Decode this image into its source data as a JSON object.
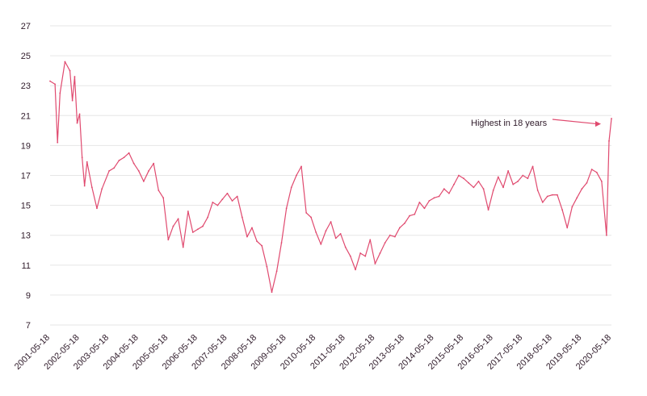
{
  "chart_data": {
    "type": "line",
    "title": "",
    "xlabel": "",
    "ylabel": "",
    "ylim": [
      7,
      27
    ],
    "y_ticks": [
      7,
      9,
      11,
      13,
      15,
      17,
      19,
      21,
      23,
      25,
      27
    ],
    "x_ticks": [
      "2001-05-18",
      "2002-05-18",
      "2003-05-18",
      "2004-05-18",
      "2005-05-18",
      "2006-05-18",
      "2007-05-18",
      "2008-05-18",
      "2009-05-18",
      "2010-05-18",
      "2011-05-18",
      "2012-05-18",
      "2013-05-18",
      "2014-05-18",
      "2015-05-18",
      "2016-05-18",
      "2017-05-18",
      "2018-05-18",
      "2019-05-18",
      "2020-05-18"
    ],
    "grid": "horizontal",
    "colors": {
      "line": "#e04a6f",
      "grid": "#e6e6e6",
      "text": "#2f1b2a"
    },
    "annotation": {
      "text": "Highest in 18 years",
      "target_x": "2020-05-18",
      "target_y": 20.5
    },
    "series": [
      {
        "x": [
          "2001-05-18",
          "2001-07-18",
          "2001-08-18",
          "2001-09-18",
          "2001-11-18",
          "2002-01-18",
          "2002-02-18",
          "2002-03-18",
          "2002-04-18",
          "2002-05-18",
          "2002-06-18",
          "2002-07-18",
          "2002-08-18",
          "2002-10-18",
          "2002-12-18",
          "2003-02-18",
          "2003-05-18",
          "2003-07-18",
          "2003-09-18",
          "2003-11-18",
          "2004-01-18",
          "2004-03-18",
          "2004-05-18",
          "2004-07-18",
          "2004-09-18",
          "2004-11-18",
          "2005-01-18",
          "2005-03-18",
          "2005-05-18",
          "2005-07-18",
          "2005-09-18",
          "2005-11-18",
          "2006-01-18",
          "2006-03-18",
          "2006-05-18",
          "2006-07-18",
          "2006-09-18",
          "2006-11-18",
          "2007-01-18",
          "2007-03-18",
          "2007-05-18",
          "2007-07-18",
          "2007-09-18",
          "2007-11-18",
          "2008-01-18",
          "2008-03-18",
          "2008-05-18",
          "2008-07-18",
          "2008-09-18",
          "2008-11-18",
          "2009-01-18",
          "2009-03-18",
          "2009-05-18",
          "2009-07-18",
          "2009-09-18",
          "2009-11-18",
          "2010-01-18",
          "2010-03-18",
          "2010-05-18",
          "2010-07-18",
          "2010-09-18",
          "2010-11-18",
          "2011-01-18",
          "2011-03-18",
          "2011-05-18",
          "2011-07-18",
          "2011-09-18",
          "2011-11-18",
          "2012-01-18",
          "2012-03-18",
          "2012-05-18",
          "2012-07-18",
          "2012-09-18",
          "2012-11-18",
          "2013-01-18",
          "2013-03-18",
          "2013-05-18",
          "2013-07-18",
          "2013-09-18",
          "2013-11-18",
          "2014-01-18",
          "2014-03-18",
          "2014-05-18",
          "2014-07-18",
          "2014-09-18",
          "2014-11-18",
          "2015-01-18",
          "2015-03-18",
          "2015-05-18",
          "2015-07-18",
          "2015-09-18",
          "2015-11-18",
          "2016-01-18",
          "2016-03-18",
          "2016-05-18",
          "2016-07-18",
          "2016-09-18",
          "2016-11-18",
          "2017-01-18",
          "2017-03-18",
          "2017-05-18",
          "2017-07-18",
          "2017-09-18",
          "2017-11-18",
          "2018-01-18",
          "2018-03-18",
          "2018-05-18",
          "2018-07-18",
          "2018-09-18",
          "2018-11-18",
          "2019-01-18",
          "2019-03-18",
          "2019-05-18",
          "2019-07-18",
          "2019-09-18",
          "2019-11-18",
          "2020-01-18",
          "2020-03-18",
          "2020-04-18",
          "2020-05-18"
        ],
        "values": [
          23.3,
          23.1,
          19.2,
          22.5,
          24.6,
          24.0,
          22.0,
          23.6,
          20.5,
          21.1,
          18.2,
          16.3,
          17.9,
          16.2,
          14.8,
          16.1,
          17.3,
          17.5,
          18.0,
          18.2,
          18.5,
          17.8,
          17.3,
          16.6,
          17.3,
          17.8,
          16.0,
          15.5,
          12.7,
          13.6,
          14.1,
          12.2,
          14.6,
          13.2,
          13.4,
          13.6,
          14.2,
          15.2,
          15.0,
          15.4,
          15.8,
          15.3,
          15.6,
          14.2,
          12.9,
          13.5,
          12.6,
          12.3,
          10.9,
          9.2,
          10.6,
          12.5,
          14.8,
          16.2,
          17.0,
          17.6,
          14.5,
          14.2,
          13.2,
          12.4,
          13.3,
          13.9,
          12.8,
          13.1,
          12.2,
          11.6,
          10.7,
          11.8,
          11.6,
          12.7,
          11.1,
          11.8,
          12.5,
          13.0,
          12.9,
          13.5,
          13.8,
          14.3,
          14.4,
          15.2,
          14.8,
          15.3,
          15.5,
          15.6,
          16.1,
          15.8,
          16.4,
          17.0,
          16.8,
          16.5,
          16.2,
          16.6,
          16.1,
          14.7,
          16.0,
          16.9,
          16.2,
          17.3,
          16.4,
          16.6,
          17.0,
          16.8,
          17.6,
          16.0,
          15.2,
          15.6,
          15.7,
          15.7,
          14.7,
          13.5,
          14.9,
          15.5,
          16.1,
          16.5,
          17.4,
          17.2,
          16.6,
          13.0,
          19.3,
          20.8
        ]
      }
    ]
  }
}
